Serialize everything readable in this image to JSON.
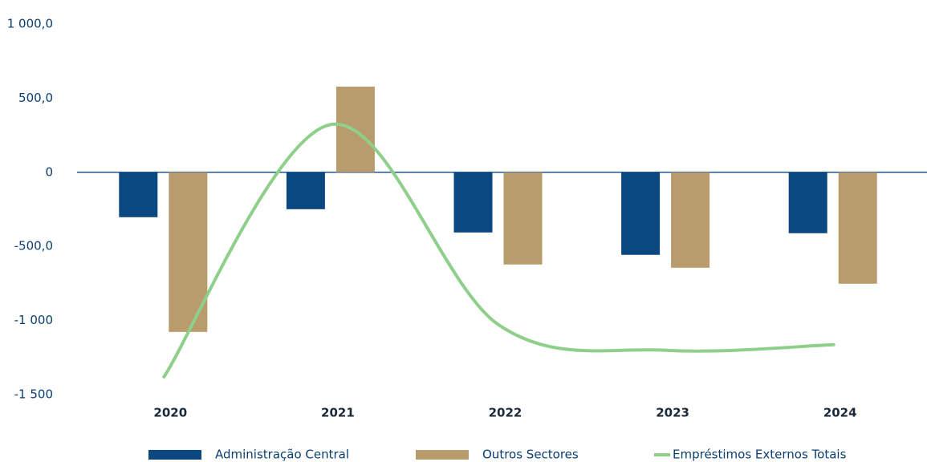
{
  "chart_data": {
    "type": "bar",
    "categories": [
      "2020",
      "2021",
      "2022",
      "2023",
      "2024"
    ],
    "series": [
      {
        "name": "Administração Central",
        "type": "bar",
        "color": "#0b4780",
        "values": [
          -303,
          -249,
          -406,
          -557,
          -411
        ]
      },
      {
        "name": "Outros Sectores",
        "type": "bar",
        "color": "#b89c6e",
        "values": [
          -1077,
          578,
          -622,
          -644,
          -752
        ]
      },
      {
        "name": "Empréstimos Externos Totais",
        "type": "line",
        "color": "#8ecf8a",
        "values": [
          -1380,
          323,
          -1030,
          -1201,
          -1163
        ]
      }
    ],
    "ylim": [
      -1500,
      1000
    ],
    "yticks": [
      {
        "value": -1500,
        "label": "-1 500"
      },
      {
        "value": -1000,
        "label": "-1 000"
      },
      {
        "value": -500,
        "label": "-500,0"
      },
      0,
      {
        "value": 500,
        "label": "500,0"
      },
      {
        "value": 1000,
        "label": "1 000,0"
      }
    ],
    "legend": "bottom"
  }
}
